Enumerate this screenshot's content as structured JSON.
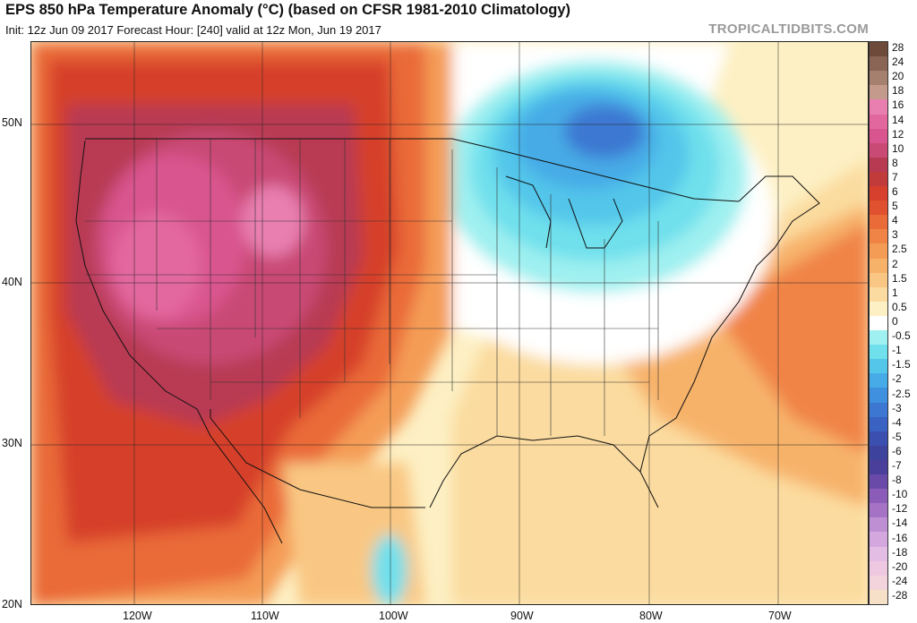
{
  "header": {
    "title": "EPS 850 hPa Temperature Anomaly (°C) (based on CFSR 1981-2010 Climatology)",
    "subtitle": "Init: 12z Jun 09 2017   Forecast Hour: [240]   valid at 12z Mon, Jun 19 2017",
    "credit": "TROPICALTIDBITS.COM"
  },
  "map": {
    "lat_labels": [
      "50N",
      "40N",
      "30N",
      "20N"
    ],
    "lon_labels": [
      "120W",
      "110W",
      "100W",
      "90W",
      "80W",
      "70W"
    ]
  },
  "colorbar": {
    "levels": [
      {
        "label": "28",
        "color": "#6e4a3a"
      },
      {
        "label": "24",
        "color": "#8a6455"
      },
      {
        "label": "20",
        "color": "#a5806f"
      },
      {
        "label": "18",
        "color": "#c49a8c"
      },
      {
        "label": "16",
        "color": "#e87fb0"
      },
      {
        "label": "14",
        "color": "#e3679f"
      },
      {
        "label": "12",
        "color": "#d9558f"
      },
      {
        "label": "10",
        "color": "#c94a74"
      },
      {
        "label": "8",
        "color": "#b83a52"
      },
      {
        "label": "7",
        "color": "#c23b3b"
      },
      {
        "label": "6",
        "color": "#d6402c"
      },
      {
        "label": "5",
        "color": "#e0522f"
      },
      {
        "label": "4",
        "color": "#ea6a38"
      },
      {
        "label": "3",
        "color": "#f08446"
      },
      {
        "label": "2.5",
        "color": "#f49c56"
      },
      {
        "label": "2",
        "color": "#f7b26a"
      },
      {
        "label": "1.5",
        "color": "#f9c783"
      },
      {
        "label": "1",
        "color": "#fbdb9f"
      },
      {
        "label": "0.5",
        "color": "#fdf0c4"
      },
      {
        "label": "0",
        "color": "#ffffff"
      },
      {
        "label": "-0.5",
        "color": "#9ff0f0"
      },
      {
        "label": "-1",
        "color": "#6fe0ec"
      },
      {
        "label": "-1.5",
        "color": "#53c6ea"
      },
      {
        "label": "-2",
        "color": "#46abe6"
      },
      {
        "label": "-2.5",
        "color": "#3f90de"
      },
      {
        "label": "-3",
        "color": "#3c78d2"
      },
      {
        "label": "-4",
        "color": "#3a62c2"
      },
      {
        "label": "-5",
        "color": "#3a4fb0"
      },
      {
        "label": "-6",
        "color": "#3d439c"
      },
      {
        "label": "-7",
        "color": "#4a3f9a"
      },
      {
        "label": "-8",
        "color": "#6a4aa8"
      },
      {
        "label": "-10",
        "color": "#8b5cb8"
      },
      {
        "label": "-12",
        "color": "#a572c6"
      },
      {
        "label": "-14",
        "color": "#bf8fd4"
      },
      {
        "label": "-16",
        "color": "#d4a8de"
      },
      {
        "label": "-18",
        "color": "#e4bde4"
      },
      {
        "label": "-20",
        "color": "#eec8e0"
      },
      {
        "label": "-24",
        "color": "#f3d4dc"
      },
      {
        "label": "-28",
        "color": "#f7e0c8"
      }
    ]
  }
}
